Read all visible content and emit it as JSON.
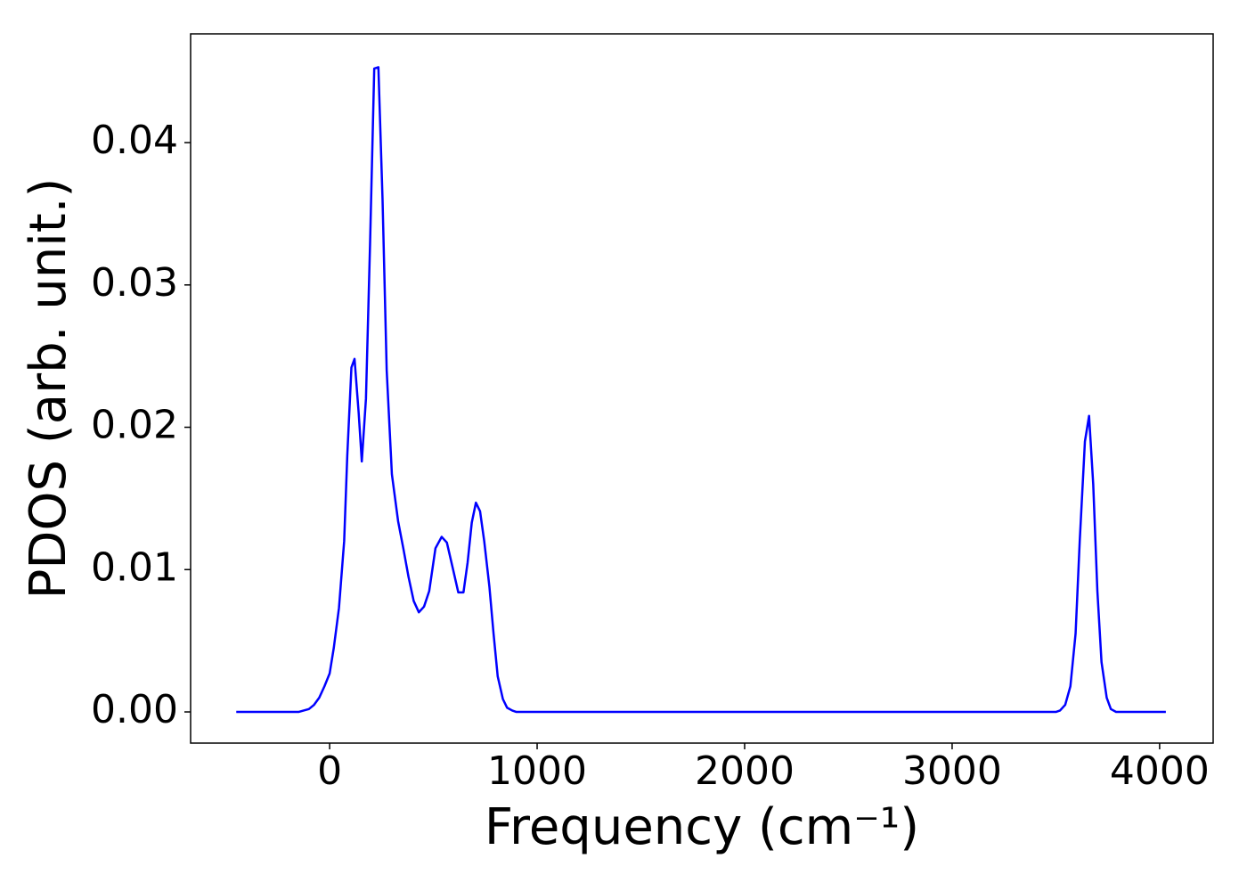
{
  "chart_data": {
    "type": "line",
    "xlabel": "Frequency (cm⁻¹)",
    "ylabel": "PDOS (arb. unit.)",
    "color": "#0000ff",
    "grid": false,
    "xlim": [
      -670,
      4258
    ],
    "ylim": [
      -0.00219,
      0.04764
    ],
    "xticks": [
      0,
      1000,
      2000,
      3000,
      4000
    ],
    "yticks": [
      {
        "value": 0,
        "label": "0.00"
      },
      0.01,
      0.02,
      0.03,
      0.04
    ],
    "x": [
      -450,
      -150,
      -100,
      -75,
      -50,
      -25,
      0,
      20,
      45,
      70,
      85,
      105,
      120,
      140,
      155,
      175,
      195,
      215,
      235,
      255,
      275,
      300,
      330,
      355,
      380,
      405,
      430,
      455,
      480,
      510,
      540,
      565,
      595,
      620,
      645,
      665,
      685,
      705,
      725,
      745,
      770,
      790,
      810,
      835,
      855,
      880,
      900,
      3500,
      3520,
      3545,
      3570,
      3595,
      3615,
      3640,
      3660,
      3680,
      3700,
      3720,
      3745,
      3765,
      3790,
      4030
    ],
    "values": [
      0,
      0,
      0.0002,
      0.0005,
      0.001,
      0.0018,
      0.0027,
      0.0045,
      0.0073,
      0.012,
      0.018,
      0.0242,
      0.0248,
      0.021,
      0.0176,
      0.022,
      0.033,
      0.0452,
      0.0453,
      0.036,
      0.024,
      0.0167,
      0.0134,
      0.0115,
      0.0095,
      0.0078,
      0.007,
      0.0074,
      0.0085,
      0.0115,
      0.0123,
      0.0119,
      0.01,
      0.0084,
      0.0084,
      0.0105,
      0.0133,
      0.0147,
      0.0141,
      0.012,
      0.0088,
      0.0055,
      0.0025,
      0.0009,
      0.0003,
      0.0001,
      0,
      0,
      0.0001,
      0.0005,
      0.0018,
      0.0055,
      0.012,
      0.019,
      0.0208,
      0.016,
      0.0085,
      0.0035,
      0.001,
      0.0002,
      0,
      0
    ]
  }
}
